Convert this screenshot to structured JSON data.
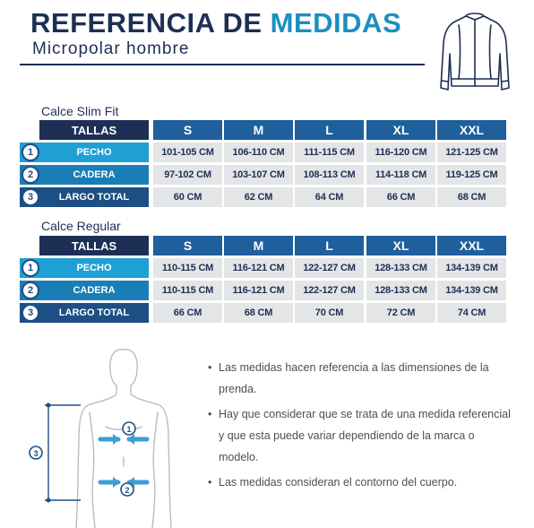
{
  "header": {
    "title_part1": "REFERENCIA DE",
    "title_part2": "MEDIDAS",
    "subtitle": "Micropolar hombre"
  },
  "tables": [
    {
      "label": "Calce Slim Fit",
      "header_tallas": "TALLAS",
      "sizes": [
        "S",
        "M",
        "L",
        "XL",
        "XXL"
      ],
      "rows": [
        {
          "num": "1",
          "label": "PECHO",
          "values": [
            "101-105 CM",
            "106-110 CM",
            "111-115 CM",
            "116-120 CM",
            "121-125 CM"
          ]
        },
        {
          "num": "2",
          "label": "CADERA",
          "values": [
            "97-102 CM",
            "103-107 CM",
            "108-113 CM",
            "114-118 CM",
            "119-125 CM"
          ]
        },
        {
          "num": "3",
          "label": "LARGO TOTAL",
          "values": [
            "60 CM",
            "62 CM",
            "64 CM",
            "66 CM",
            "68 CM"
          ]
        }
      ]
    },
    {
      "label": "Calce Regular",
      "header_tallas": "TALLAS",
      "sizes": [
        "S",
        "M",
        "L",
        "XL",
        "XXL"
      ],
      "rows": [
        {
          "num": "1",
          "label": "PECHO",
          "values": [
            "110-115 CM",
            "116-121 CM",
            "122-127 CM",
            "128-133 CM",
            "134-139 CM"
          ]
        },
        {
          "num": "2",
          "label": "CADERA",
          "values": [
            "110-115 CM",
            "116-121 CM",
            "122-127 CM",
            "128-133 CM",
            "134-139 CM"
          ]
        },
        {
          "num": "3",
          "label": "LARGO TOTAL",
          "values": [
            "66 CM",
            "68 CM",
            "70 CM",
            "72 CM",
            "74 CM"
          ]
        }
      ]
    }
  ],
  "figure": {
    "marker_1": "1",
    "marker_2": "2",
    "marker_3": "3"
  },
  "notes": [
    "Las medidas hacen referencia a las dimensiones de la prenda.",
    "Hay que considerar que se trata de una medida referencial y que esta puede variar dependiendo de la marca o modelo.",
    "Las medidas consideran el contorno del cuerpo."
  ],
  "colors": {
    "navy": "#1d2f55",
    "accent": "#1b8fc0",
    "label_row_1": "#1ea0d4",
    "label_row_2": "#1a7eb6",
    "label_row_3": "#1d4f85",
    "size_header": "#1f5f9c",
    "cell_bg": "#e4e5e6"
  }
}
